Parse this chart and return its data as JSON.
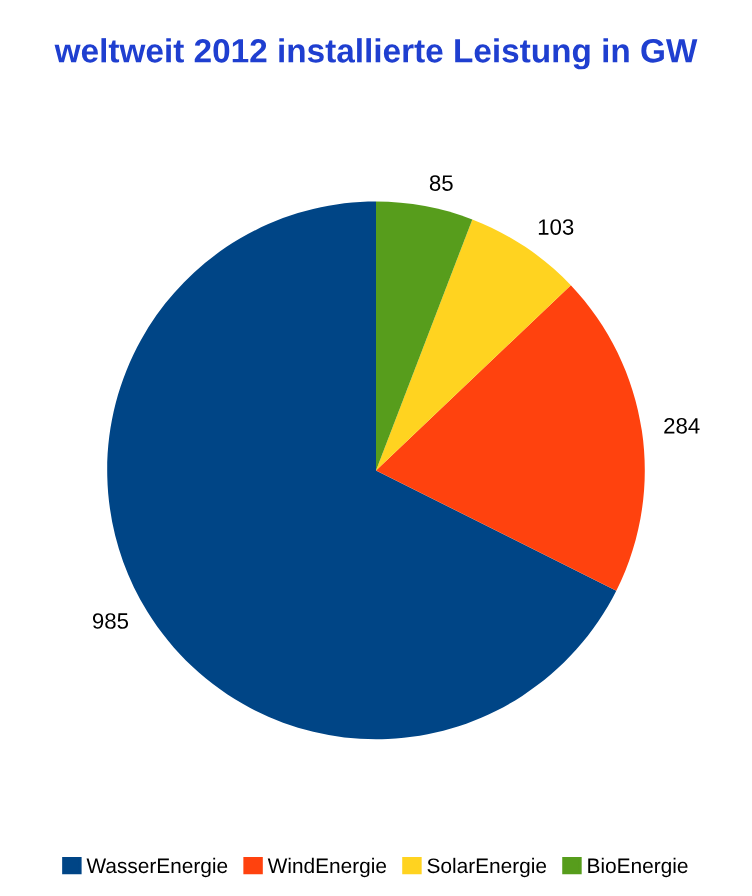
{
  "chart_data": {
    "type": "pie",
    "title": "weltweit 2012 installierte Leistung in GW",
    "categories": [
      "WasserEnergie",
      "WindEnergie",
      "SolarEnergie",
      "BioEnergie"
    ],
    "values": [
      985,
      284,
      103,
      85
    ],
    "colors": [
      "#004586",
      "#ff420e",
      "#ffd320",
      "#579d1c"
    ],
    "data_labels": true,
    "legend": "bottom"
  }
}
